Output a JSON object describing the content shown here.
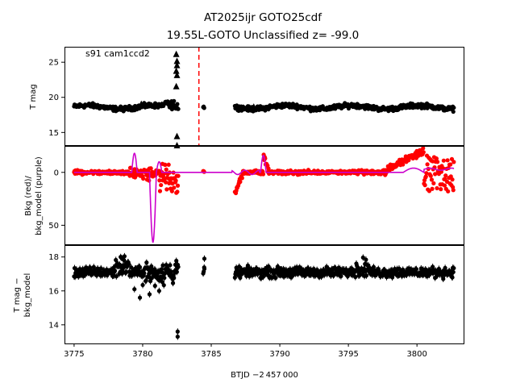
{
  "chart_data": {
    "type": "scatter",
    "title_line1": "AT2025ijr  GOTO25cdf",
    "title_line2": "19.55L-GOTO Unclassified z= -99.0",
    "xlabel": "BTJD −2 457 000",
    "xlim": [
      3774.3,
      3803.4
    ],
    "x_ticks": [
      3775,
      3780,
      3785,
      3790,
      3795,
      3800
    ],
    "x_tick_labels": [
      "3775",
      "3780",
      "3785",
      "3790",
      "3795",
      "3800"
    ],
    "segments": [
      [
        3775.0,
        3782.6
      ],
      [
        3784.4,
        3784.5
      ],
      [
        3786.7,
        3802.7
      ]
    ],
    "panels": [
      {
        "ylabel": "T mag",
        "ylim": [
          27.2,
          13.2
        ],
        "y_ticks": [
          15,
          20,
          25
        ],
        "y_tick_labels": [
          "15",
          "20",
          "25"
        ],
        "annotation": "s91 cam1ccd2",
        "vline_x": 3784.1,
        "vline_color": "#ff0000",
        "series_color": "#000000",
        "triangle_points": [
          [
            3782.5,
            13.2
          ],
          [
            3782.5,
            14.5
          ],
          [
            3782.45,
            21.6
          ],
          [
            3782.5,
            23.2
          ],
          [
            3782.45,
            23.8
          ],
          [
            3782.5,
            24.6
          ],
          [
            3782.5,
            25.2
          ],
          [
            3782.45,
            26.2
          ],
          [
            3779.9,
            19.1
          ],
          [
            3781.4,
            19.0
          ],
          [
            3787.2,
            18.6
          ],
          [
            3788.1,
            18.7
          ]
        ]
      },
      {
        "ylabel_line1": "Bkg (red)/",
        "ylabel_line2": "bkg_model (purple)",
        "ylim": [
          -25,
          68
        ],
        "y_ticks": [
          0,
          50
        ],
        "y_tick_labels": [
          "0",
          "50"
        ],
        "series_color": "#ff0000",
        "model_color": "#cc00cc"
      },
      {
        "ylabel_line1": "T mag −",
        "ylabel_line2": "bkg_model",
        "ylim": [
          18.7,
          12.9
        ],
        "y_ticks": [
          14,
          16,
          18
        ],
        "y_tick_labels": [
          "14",
          "16",
          "18"
        ],
        "series_color": "#000000",
        "outlier_points": [
          [
            3782.55,
            13.3
          ],
          [
            3782.55,
            13.6
          ],
          [
            3779.8,
            15.6
          ],
          [
            3780.5,
            15.8
          ],
          [
            3781.2,
            16.0
          ],
          [
            3779.4,
            16.1
          ],
          [
            3780.9,
            16.3
          ],
          [
            3784.5,
            17.3
          ],
          [
            3784.5,
            17.9
          ],
          [
            3787.1,
            16.9
          ]
        ]
      }
    ]
  }
}
